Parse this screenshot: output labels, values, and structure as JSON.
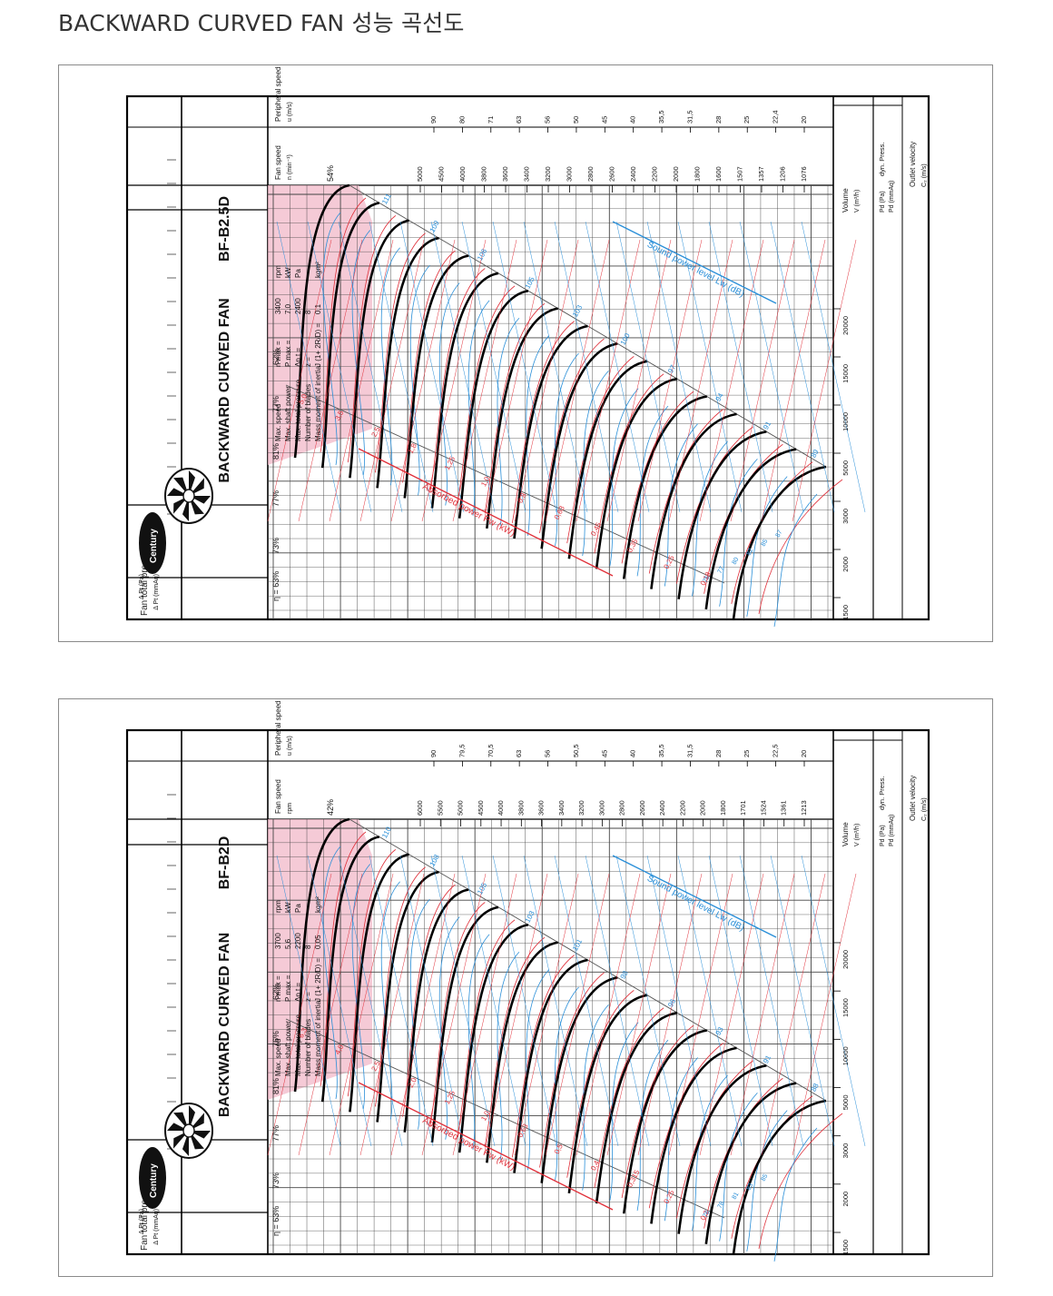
{
  "page": {
    "title": "BACKWARD CURVED FAN 성능 곡선도"
  },
  "colors": {
    "curve": "#000000",
    "efficiency": "#e0303a",
    "power": "#e0303a",
    "sound": "#2a8fd8",
    "shade": "#f2b8c8",
    "grid": "#444444"
  },
  "charts": [
    {
      "code": "BF-B2.5D",
      "product": "BACKWARD CURVED FAN",
      "brand": "Century",
      "params": {
        "labels": [
          "Max. speed",
          "Max. shaft power",
          "Max. total pressure",
          "Number of blades",
          "Mass moment of inertia"
        ],
        "symbols": [
          "n max =",
          "P max =",
          "Δp t =",
          "z =",
          "J (1+ 2R/D) ="
        ],
        "values": [
          "3400",
          "7,0",
          "2400",
          "8",
          "0,1"
        ],
        "units": [
          "rpm",
          "kW",
          "Pa",
          "",
          "kgm²"
        ]
      },
      "efficiency_row": [
        "η = 63%",
        "73%",
        "77%",
        "81%",
        "77%",
        "62%"
      ],
      "top_efficiency": "54%",
      "header_labels": {
        "fan_speed": "Fan speed",
        "n_unit": "n (min⁻¹)",
        "peripheral": "Peripheral speed",
        "u_unit": "u (m/s)"
      },
      "fan_speeds": [
        "5000",
        "4500",
        "4000",
        "3800",
        "3600",
        "3400",
        "3200",
        "3000",
        "2800",
        "2600",
        "2400",
        "2200",
        "2000",
        "1800",
        "1600",
        "1507",
        "1357",
        "1206",
        "1076"
      ],
      "peripheral_speeds": [
        "90",
        "80",
        "71",
        "63",
        "56",
        "50",
        "45",
        "40",
        "35,5",
        "31,5",
        "28",
        "25",
        "22,4",
        "20"
      ],
      "volume_ticks": [
        "1500",
        "2000",
        "3000",
        "5000",
        "10000",
        "15000",
        "20000"
      ],
      "volume_label": "Volume",
      "volume_unit": "V (m³/h)",
      "dyn_press": "dyn. Press.",
      "pd_labels": [
        "Pd (Pa)",
        "Pd (mmAq)"
      ],
      "outlet_velocity": "Outlet velocity",
      "outlet_unit": "C₂ (m/s)",
      "fan_total_pressure": "Fan total pressure",
      "dp_labels": [
        "Δ Pt (mmAq)",
        "Δ Pt (Pa)"
      ],
      "sound_label": "Sound power level Lw (dB)",
      "power_label": "Absorbed power Pw (kW)",
      "sound_values": [
        "111",
        "109",
        "106",
        "105",
        "103",
        "100",
        "97",
        "94",
        "91",
        "89"
      ],
      "power_values": [
        "5,0",
        "3,5",
        "2,5",
        "1,8",
        "1,25",
        "1,0",
        "0,8",
        "0,63",
        "0,45",
        "0,35",
        "0,25",
        "0,18"
      ],
      "low_sound_values": [
        "75",
        "77",
        "80",
        "82",
        "85",
        "87"
      ]
    },
    {
      "code": "BF-B2D",
      "product": "BACKWARD CURVED FAN",
      "brand": "Century",
      "params": {
        "labels": [
          "Max. speed",
          "Max. shaft power",
          "Max. total pressure",
          "Number of blades",
          "Mass moment of inertia"
        ],
        "symbols": [
          "n max =",
          "P max =",
          "Δp t =",
          "z =",
          "J (1+ 2R/D) ="
        ],
        "values": [
          "3700",
          "5,6",
          "2200",
          "8",
          "0,05"
        ],
        "units": [
          "rpm",
          "kW",
          "Pa",
          "",
          "kgm²"
        ]
      },
      "efficiency_row": [
        "η = 63%",
        "73%",
        "77%",
        "81%",
        "76%",
        "62%"
      ],
      "top_efficiency": "42%",
      "header_labels": {
        "fan_speed": "Fan speed",
        "n_unit": "rpm",
        "peripheral": "Peripheral speed",
        "u_unit": "u (m/s)"
      },
      "fan_speeds": [
        "6000",
        "5500",
        "5000",
        "4500",
        "4000",
        "3800",
        "3600",
        "3400",
        "3200",
        "3000",
        "2800",
        "2600",
        "2400",
        "2200",
        "2000",
        "1800",
        "1701",
        "1524",
        "1361",
        "1213"
      ],
      "peripheral_speeds": [
        "90",
        "79,5",
        "70,5",
        "63",
        "56",
        "50,5",
        "45",
        "40",
        "35,5",
        "31,5",
        "28",
        "25",
        "22,5",
        "20"
      ],
      "volume_ticks": [
        "1500",
        "2000",
        "3000",
        "5000",
        "10000",
        "15000",
        "20000"
      ],
      "volume_label": "Volume",
      "volume_unit": "V (m³/h)",
      "dyn_press": "dyn. Press.",
      "pd_labels": [
        "Pd (Pa)",
        "Pd (mmAq)"
      ],
      "outlet_velocity": "Outlet velocity",
      "outlet_unit": "C₂ (m/s)",
      "fan_total_pressure": "Fan total pressure",
      "dp_labels": [
        "Δ Pt (mmAq)",
        "Δ Pt (Pa)"
      ],
      "sound_label": "Sound power level Lw (dB)",
      "power_label": "Absorbed power Pw (kW)",
      "sound_values": [
        "110",
        "108",
        "105",
        "103",
        "101",
        "98",
        "96",
        "93",
        "91",
        "88"
      ],
      "power_values": [
        "6,3",
        "4,0",
        "2,5",
        "2,0",
        "1,25",
        "1,0",
        "0,63",
        "0,5",
        "0,4",
        "0,315",
        "0,25",
        "0,2"
      ],
      "low_sound_values": [
        "76",
        "78",
        "81",
        "83",
        "85"
      ]
    }
  ],
  "chart_data": [
    {
      "type": "line",
      "title": "BF-B2.5D",
      "xlabel": "Volume V (m³/h)",
      "ylabel": "Fan total pressure",
      "x_ticks": [
        1500,
        2000,
        3000,
        5000,
        10000,
        15000,
        20000
      ],
      "series_count": 17
    },
    {
      "type": "line",
      "title": "BF-B2D",
      "xlabel": "Volume V (m³/h)",
      "ylabel": "Fan total pressure",
      "x_ticks": [
        1500,
        2000,
        3000,
        5000,
        10000,
        15000,
        20000
      ],
      "series_count": 17
    }
  ]
}
